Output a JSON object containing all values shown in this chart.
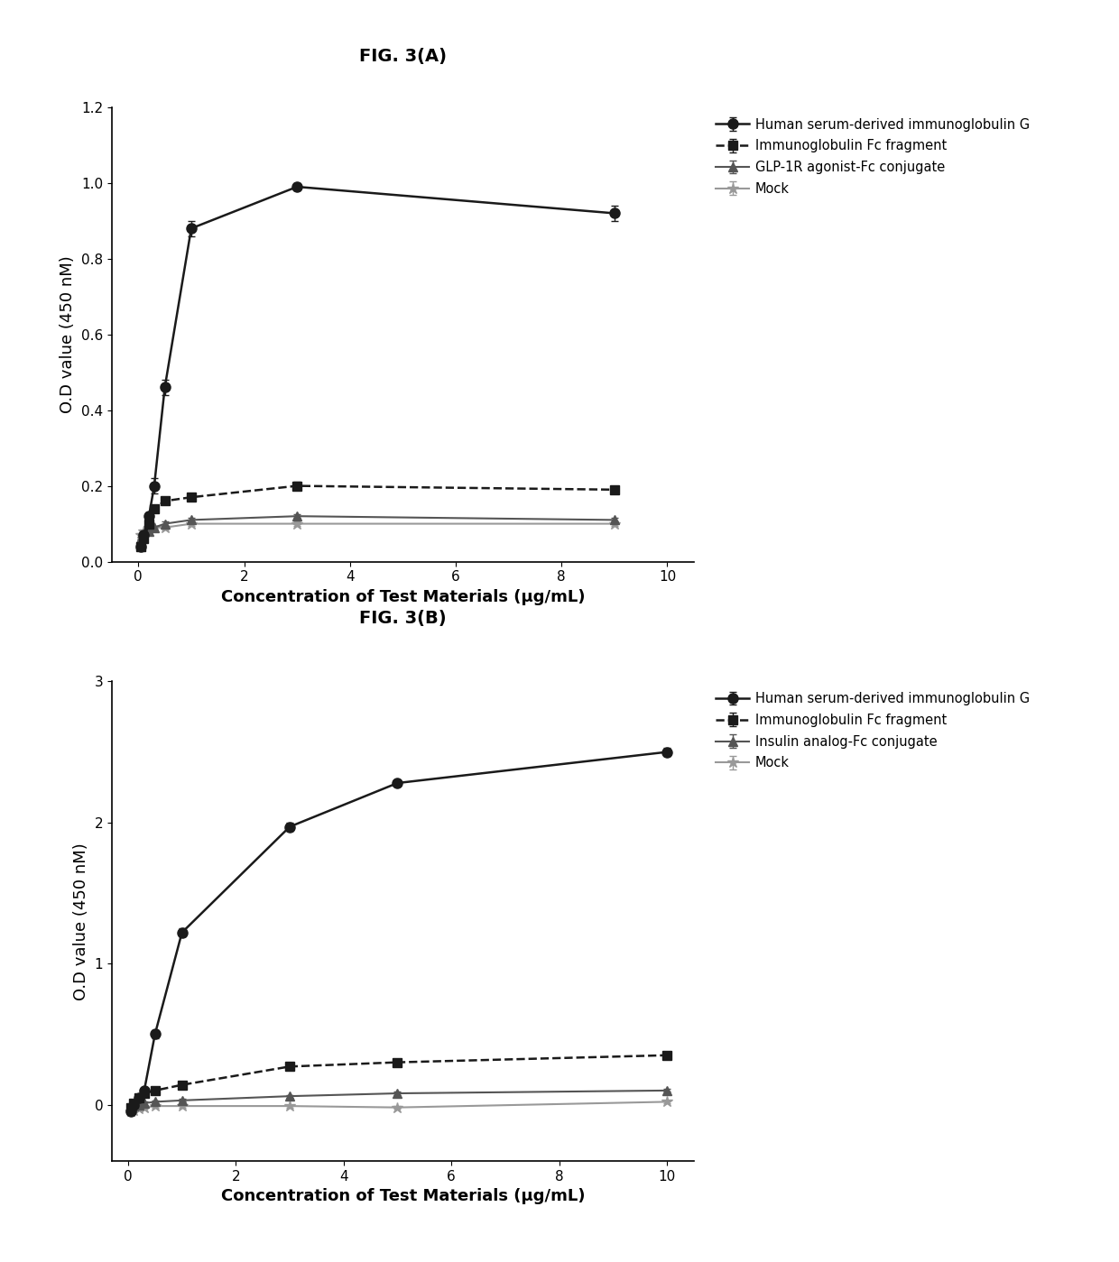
{
  "figA": {
    "title": "FIG. 3(A)",
    "xlabel": "Concentration of Test Materials (μg/mL)",
    "ylabel": "O.D value (450 nM)",
    "ylim": [
      0.0,
      1.2
    ],
    "yticks": [
      0.0,
      0.2,
      0.4,
      0.6,
      0.8,
      1.0,
      1.2
    ],
    "xlim": [
      -0.5,
      10.5
    ],
    "xticks": [
      0,
      2,
      4,
      6,
      8,
      10
    ],
    "series": [
      {
        "label": "Human serum-derived immunoglobulin G",
        "x": [
          0.05,
          0.1,
          0.2,
          0.3,
          0.5,
          1.0,
          3.0,
          9.0
        ],
        "y": [
          0.04,
          0.07,
          0.12,
          0.2,
          0.46,
          0.88,
          0.99,
          0.92
        ],
        "yerr": [
          0.01,
          0.01,
          0.01,
          0.02,
          0.02,
          0.02,
          0.01,
          0.02
        ],
        "color": "#1a1a1a",
        "marker": "o",
        "linestyle": "-",
        "linewidth": 1.8,
        "markersize": 8,
        "zorder": 5
      },
      {
        "label": "Immunoglobulin Fc fragment",
        "x": [
          0.05,
          0.1,
          0.2,
          0.3,
          0.5,
          1.0,
          3.0,
          9.0
        ],
        "y": [
          0.04,
          0.06,
          0.1,
          0.14,
          0.16,
          0.17,
          0.2,
          0.19
        ],
        "yerr": [
          0.005,
          0.005,
          0.005,
          0.005,
          0.005,
          0.01,
          0.01,
          0.01
        ],
        "color": "#1a1a1a",
        "marker": "s",
        "linestyle": "--",
        "linewidth": 1.8,
        "markersize": 7,
        "zorder": 4
      },
      {
        "label": "GLP-1R agonist-Fc conjugate",
        "x": [
          0.05,
          0.1,
          0.2,
          0.3,
          0.5,
          1.0,
          3.0,
          9.0
        ],
        "y": [
          0.06,
          0.07,
          0.08,
          0.09,
          0.1,
          0.11,
          0.12,
          0.11
        ],
        "yerr": [
          0.005,
          0.005,
          0.005,
          0.005,
          0.005,
          0.005,
          0.005,
          0.005
        ],
        "color": "#555555",
        "marker": "^",
        "linestyle": "-",
        "linewidth": 1.5,
        "markersize": 7,
        "zorder": 3
      },
      {
        "label": "Mock",
        "x": [
          0.05,
          0.1,
          0.2,
          0.3,
          0.5,
          1.0,
          3.0,
          9.0
        ],
        "y": [
          0.07,
          0.08,
          0.09,
          0.09,
          0.09,
          0.1,
          0.1,
          0.1
        ],
        "yerr": [
          0.005,
          0.005,
          0.005,
          0.005,
          0.005,
          0.005,
          0.005,
          0.005
        ],
        "color": "#999999",
        "marker": "*",
        "linestyle": "-",
        "linewidth": 1.5,
        "markersize": 9,
        "zorder": 2
      }
    ]
  },
  "figB": {
    "title": "FIG. 3(B)",
    "xlabel": "Concentration of Test Materials (μg/mL)",
    "ylabel": "O.D value (450 nM)",
    "ylim": [
      -0.4,
      3.0
    ],
    "yticks": [
      0.0,
      1.0,
      2.0,
      3.0
    ],
    "ytick_labels": [
      "0",
      "1",
      "2",
      "3"
    ],
    "xlim": [
      -0.3,
      10.5
    ],
    "xticks": [
      0,
      2,
      4,
      6,
      8,
      10
    ],
    "series": [
      {
        "label": "Human serum-derived immunoglobulin G",
        "x": [
          0.05,
          0.1,
          0.2,
          0.3,
          0.5,
          1.0,
          3.0,
          5.0,
          10.0
        ],
        "y": [
          -0.05,
          0.0,
          0.05,
          0.1,
          0.5,
          1.22,
          1.97,
          2.28,
          2.5
        ],
        "yerr": [
          0.01,
          0.01,
          0.02,
          0.02,
          0.03,
          0.03,
          0.03,
          0.02,
          0.03
        ],
        "color": "#1a1a1a",
        "marker": "o",
        "linestyle": "-",
        "linewidth": 1.8,
        "markersize": 8,
        "zorder": 5
      },
      {
        "label": "Immunoglobulin Fc fragment",
        "x": [
          0.05,
          0.1,
          0.2,
          0.3,
          0.5,
          1.0,
          3.0,
          5.0,
          10.0
        ],
        "y": [
          -0.02,
          0.01,
          0.05,
          0.08,
          0.1,
          0.14,
          0.27,
          0.3,
          0.35
        ],
        "yerr": [
          0.01,
          0.01,
          0.01,
          0.01,
          0.01,
          0.01,
          0.02,
          0.02,
          0.02
        ],
        "color": "#1a1a1a",
        "marker": "s",
        "linestyle": "--",
        "linewidth": 1.8,
        "markersize": 7,
        "zorder": 4
      },
      {
        "label": "Insulin analog-Fc conjugate",
        "x": [
          0.05,
          0.1,
          0.2,
          0.3,
          0.5,
          1.0,
          3.0,
          5.0,
          10.0
        ],
        "y": [
          -0.03,
          -0.01,
          0.0,
          0.01,
          0.02,
          0.03,
          0.06,
          0.08,
          0.1
        ],
        "yerr": [
          0.01,
          0.01,
          0.01,
          0.01,
          0.01,
          0.01,
          0.01,
          0.01,
          0.01
        ],
        "color": "#555555",
        "marker": "^",
        "linestyle": "-",
        "linewidth": 1.5,
        "markersize": 7,
        "zorder": 3
      },
      {
        "label": "Mock",
        "x": [
          0.05,
          0.1,
          0.2,
          0.3,
          0.5,
          1.0,
          3.0,
          5.0,
          10.0
        ],
        "y": [
          -0.05,
          -0.04,
          -0.03,
          -0.02,
          -0.01,
          -0.01,
          -0.01,
          -0.02,
          0.02
        ],
        "yerr": [
          0.01,
          0.01,
          0.01,
          0.01,
          0.01,
          0.01,
          0.01,
          0.01,
          0.01
        ],
        "color": "#999999",
        "marker": "*",
        "linestyle": "-",
        "linewidth": 1.5,
        "markersize": 9,
        "zorder": 2
      }
    ]
  },
  "figure_bg": "#ffffff",
  "font_family": "DejaVu Sans",
  "legend_fontsize": 10.5,
  "axis_fontsize": 13,
  "title_fontsize": 14,
  "tick_fontsize": 11
}
